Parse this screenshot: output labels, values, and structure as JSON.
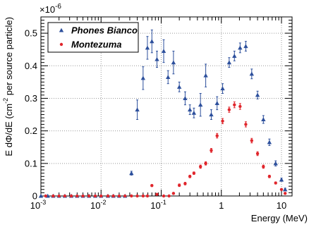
{
  "chart_data": {
    "type": "scatter",
    "title": "",
    "xlabel": "Energy (MeV)",
    "ylabel_prefix": "E dΦ/dE (cm",
    "ylabel_sup": "-2",
    "ylabel_suffix": " per source particle)",
    "y_multiplier": "×10",
    "y_multiplier_exp": "-6",
    "x_scale": "log",
    "xlim": [
      0.001,
      15
    ],
    "ylim": [
      0,
      0.55
    ],
    "x_ticks": [
      0.001,
      0.01,
      0.1,
      1,
      10
    ],
    "x_tick_labels": [
      "10",
      "10",
      "10",
      "1",
      "10"
    ],
    "x_tick_exps": [
      "-3",
      "-2",
      "-1",
      "",
      ""
    ],
    "y_ticks": [
      0,
      0.1,
      0.2,
      0.3,
      0.4,
      0.5
    ],
    "y_tick_labels": [
      "0",
      "0.1",
      "0.2",
      "0.3",
      "0.4",
      "0.5"
    ],
    "grid": true,
    "legend_position": "top-left",
    "series": [
      {
        "name": "Phones Bianco",
        "color": "#2c4f9c",
        "marker": "triangle",
        "x": [
          0.001,
          0.0013,
          0.0016,
          0.002,
          0.0025,
          0.0032,
          0.004,
          0.005,
          0.0063,
          0.008,
          0.01,
          0.013,
          0.016,
          0.02,
          0.025,
          0.032,
          0.04,
          0.05,
          0.059,
          0.07,
          0.085,
          0.11,
          0.13,
          0.16,
          0.2,
          0.25,
          0.3,
          0.35,
          0.45,
          0.55,
          0.68,
          0.85,
          1.05,
          1.35,
          1.65,
          2.05,
          2.55,
          3.2,
          4.0,
          5.0,
          6.3,
          8.0,
          10.0,
          11.5
        ],
        "y": [
          0.0,
          0.0,
          0.0,
          0.0,
          0.0,
          0.0,
          0.0,
          0.0,
          0.0,
          0.0,
          0.0,
          0.0,
          0.0,
          0.0,
          0.0,
          0.07,
          0.265,
          0.362,
          0.455,
          0.475,
          0.42,
          0.445,
          0.365,
          0.41,
          0.335,
          0.3,
          0.265,
          0.255,
          0.28,
          0.37,
          0.25,
          0.285,
          0.33,
          0.41,
          0.43,
          0.455,
          0.46,
          0.375,
          0.31,
          0.235,
          0.165,
          0.1,
          0.05,
          0.02
        ],
        "err": [
          0.0,
          0.0,
          0.0,
          0.0,
          0.0,
          0.0,
          0.0,
          0.0,
          0.0,
          0.0,
          0.0,
          0.0,
          0.0,
          0.0,
          0.0,
          0.006,
          0.03,
          0.035,
          0.035,
          0.035,
          0.025,
          0.035,
          0.02,
          0.035,
          0.015,
          0.02,
          0.015,
          0.015,
          0.035,
          0.035,
          0.015,
          0.02,
          0.015,
          0.015,
          0.015,
          0.015,
          0.015,
          0.015,
          0.012,
          0.012,
          0.01,
          0.008,
          0.005,
          0.004
        ]
      },
      {
        "name": "Montezuma",
        "color": "#e0262c",
        "marker": "circle",
        "x": [
          0.0012,
          0.0016,
          0.002,
          0.0025,
          0.0032,
          0.004,
          0.005,
          0.0063,
          0.008,
          0.01,
          0.013,
          0.016,
          0.02,
          0.025,
          0.032,
          0.04,
          0.05,
          0.059,
          0.07,
          0.085,
          0.11,
          0.135,
          0.16,
          0.2,
          0.25,
          0.3,
          0.35,
          0.45,
          0.55,
          0.68,
          0.85,
          1.05,
          1.35,
          1.65,
          2.05,
          2.55,
          3.2,
          4.0,
          5.0,
          6.3,
          8.0,
          10.0,
          11.5
        ],
        "y": [
          0.0,
          0.0,
          0.0,
          0.0,
          0.0,
          0.0,
          0.0,
          0.0,
          0.0,
          0.0,
          0.0,
          0.0,
          0.0,
          0.0,
          0.0,
          0.0,
          0.0,
          0.0,
          0.032,
          0.005,
          0.0,
          0.0,
          0.008,
          0.033,
          0.038,
          0.06,
          0.07,
          0.09,
          0.1,
          0.14,
          0.185,
          0.23,
          0.265,
          0.28,
          0.275,
          0.22,
          0.17,
          0.13,
          0.09,
          0.06,
          0.04,
          0.02,
          0.008
        ],
        "err": [
          0,
          0,
          0,
          0,
          0,
          0,
          0,
          0,
          0,
          0,
          0,
          0,
          0,
          0,
          0,
          0,
          0,
          0,
          0.003,
          0.002,
          0,
          0,
          0.002,
          0.004,
          0.004,
          0.004,
          0.004,
          0.005,
          0.005,
          0.006,
          0.007,
          0.008,
          0.008,
          0.009,
          0.009,
          0.008,
          0.007,
          0.006,
          0.005,
          0.004,
          0.003,
          0.002,
          0.002
        ]
      }
    ]
  }
}
